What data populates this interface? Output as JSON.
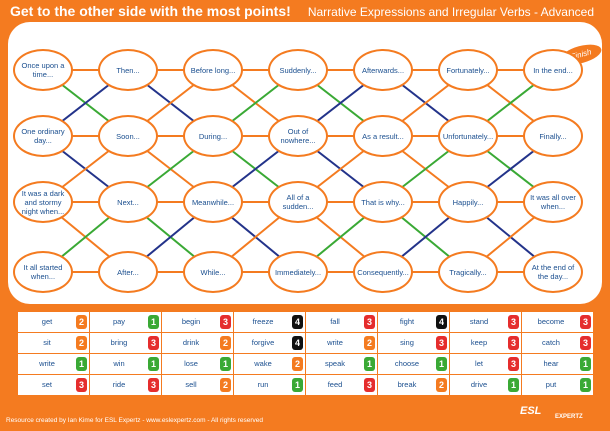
{
  "header": {
    "left": "Get to the other side with the most points!",
    "right": "Narrative Expressions and Irregular Verbs - Advanced"
  },
  "board": {
    "finish_label": "Finish",
    "rows": [
      [
        "Once upon a time...",
        "Then...",
        "Before long...",
        "Suddenly...",
        "Afterwards...",
        "Fortunately...",
        "In the end..."
      ],
      [
        "One ordinary day...",
        "Soon...",
        "During...",
        "Out of nowhere...",
        "As a result...",
        "Unfortunately...",
        "Finally..."
      ],
      [
        "It was a dark and stormy night when...",
        "Next...",
        "Meanwhile...",
        "All of a sudden...",
        "That is why...",
        "Happily...",
        "It was all over when..."
      ],
      [
        "It all started when...",
        "After...",
        "While...",
        "Immediately...",
        "Consequently...",
        "Tragically...",
        "At the end of the day..."
      ]
    ],
    "connection_colors": {
      "orange": "#f47b20",
      "green": "#3aa935",
      "navy": "#23338a"
    }
  },
  "verbs": {
    "rows": [
      [
        {
          "w": "get",
          "p": 2
        },
        {
          "w": "pay",
          "p": 1
        },
        {
          "w": "begin",
          "p": 3
        },
        {
          "w": "freeze",
          "p": 4
        },
        {
          "w": "fall",
          "p": 3
        },
        {
          "w": "fight",
          "p": 4
        },
        {
          "w": "stand",
          "p": 3
        },
        {
          "w": "become",
          "p": 3
        }
      ],
      [
        {
          "w": "sit",
          "p": 2
        },
        {
          "w": "bring",
          "p": 3
        },
        {
          "w": "drink",
          "p": 2
        },
        {
          "w": "forgive",
          "p": 4
        },
        {
          "w": "write",
          "p": 2
        },
        {
          "w": "sing",
          "p": 3
        },
        {
          "w": "keep",
          "p": 3
        },
        {
          "w": "catch",
          "p": 3
        }
      ],
      [
        {
          "w": "write",
          "p": 1
        },
        {
          "w": "win",
          "p": 1
        },
        {
          "w": "lose",
          "p": 1
        },
        {
          "w": "wake",
          "p": 2
        },
        {
          "w": "speak",
          "p": 1
        },
        {
          "w": "choose",
          "p": 1
        },
        {
          "w": "let",
          "p": 3
        },
        {
          "w": "hear",
          "p": 1
        }
      ],
      [
        {
          "w": "set",
          "p": 3
        },
        {
          "w": "ride",
          "p": 3
        },
        {
          "w": "sell",
          "p": 2
        },
        {
          "w": "run",
          "p": 1
        },
        {
          "w": "feed",
          "p": 3
        },
        {
          "w": "break",
          "p": 2
        },
        {
          "w": "drive",
          "p": 1
        },
        {
          "w": "put",
          "p": 1
        }
      ]
    ],
    "badge_colors": {
      "1": "#3aa935",
      "2": "#f47b20",
      "3": "#e52d2d",
      "4": "#111111"
    }
  },
  "footer": {
    "credit": "Resource created by Ian Kime for ESL Expertz - www.eslexpertz.com - All rights reserved",
    "logo": "ESL",
    "logo_sub": "EXPERTZ"
  }
}
